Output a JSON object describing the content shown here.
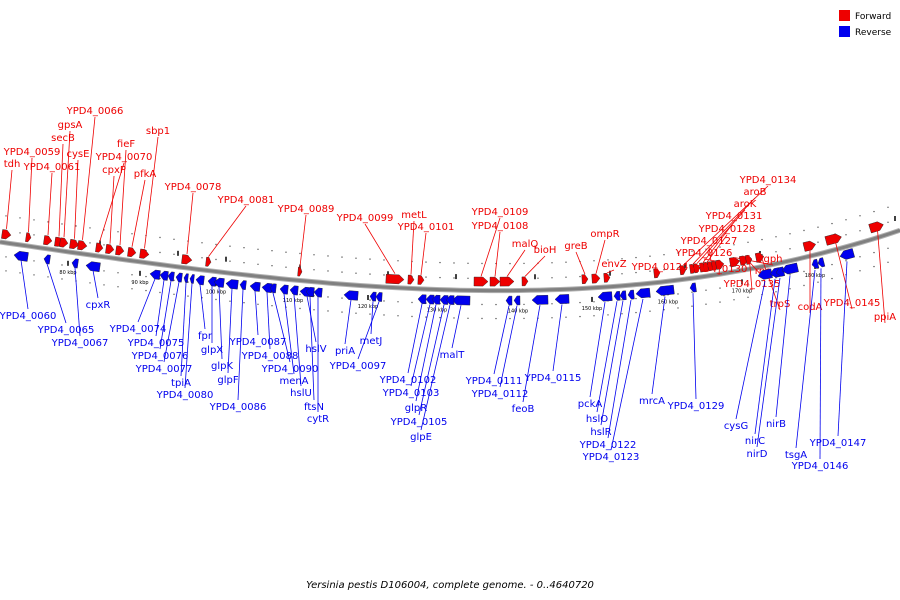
{
  "caption": "Yersinia pestis D106004, complete genome. - 0..4640720",
  "legend": [
    {
      "label": "Forward",
      "color": "#ee0000"
    },
    {
      "label": "Reverse",
      "color": "#0000ee"
    }
  ],
  "colors": {
    "forward": "#ee0000",
    "reverse": "#0000ee",
    "backbone": "#808080"
  },
  "ticks": [
    "80 kbp",
    "90 kbp",
    "100 kbp",
    "110 kbp",
    "120 kbp",
    "130 kbp",
    "140 kbp",
    "150 kbp",
    "160 kbp",
    "170 kbp",
    "180 kbp"
  ],
  "forward_genes": [
    "tdh",
    "YPD4_0059",
    "YPD4_0061",
    "secB",
    "gpsA",
    "cysE",
    "YPD4_0066",
    "YPD4_0070",
    "cpxP",
    "fieF",
    "pfkA",
    "sbp1",
    "YPD4_0078",
    "YPD4_0081",
    "YPD4_0089",
    "YPD4_0099",
    "metL",
    "YPD4_0101",
    "YPD4_0109",
    "YPD4_0108",
    "malQ",
    "bioH",
    "greB",
    "ompR",
    "envZ",
    "YPD4_0124",
    "YPD4_0134",
    "aroB",
    "aroK",
    "YPD4_0131",
    "YPD4_0128",
    "YPD4_0127",
    "YPD4_0126",
    "YPD4_0130",
    "gph",
    "rpe",
    "YPD4_0135",
    "trpS",
    "codA",
    "YPD4_0145",
    "ppiA"
  ],
  "reverse_genes": [
    "YPD4_0060",
    "YPD4_0065",
    "YPD4_0067",
    "cpxR",
    "YPD4_0074",
    "YPD4_0075",
    "YPD4_0076",
    "YPD4_0077",
    "tpiA",
    "YPD4_0080",
    "fpr",
    "glpX",
    "glpK",
    "glpF",
    "YPD4_0086",
    "YPD4_0087",
    "YPD4_0088",
    "YPD4_0090",
    "menA",
    "hslU",
    "hslV",
    "ftsN",
    "cytR",
    "priA",
    "metJ",
    "YPD4_0097",
    "malT",
    "YPD4_0102",
    "YPD4_0103",
    "glpR",
    "YPD4_0105",
    "glpE",
    "YPD4_0111",
    "YPD4_0112",
    "feoB",
    "YPD4_0115",
    "pckA",
    "hslO",
    "hslR",
    "YPD4_0122",
    "YPD4_0123",
    "mrcA",
    "YPD4_0129",
    "cysG",
    "nirC",
    "nirD",
    "nirB",
    "tsgA",
    "YPD4_0146",
    "YPD4_0147"
  ]
}
